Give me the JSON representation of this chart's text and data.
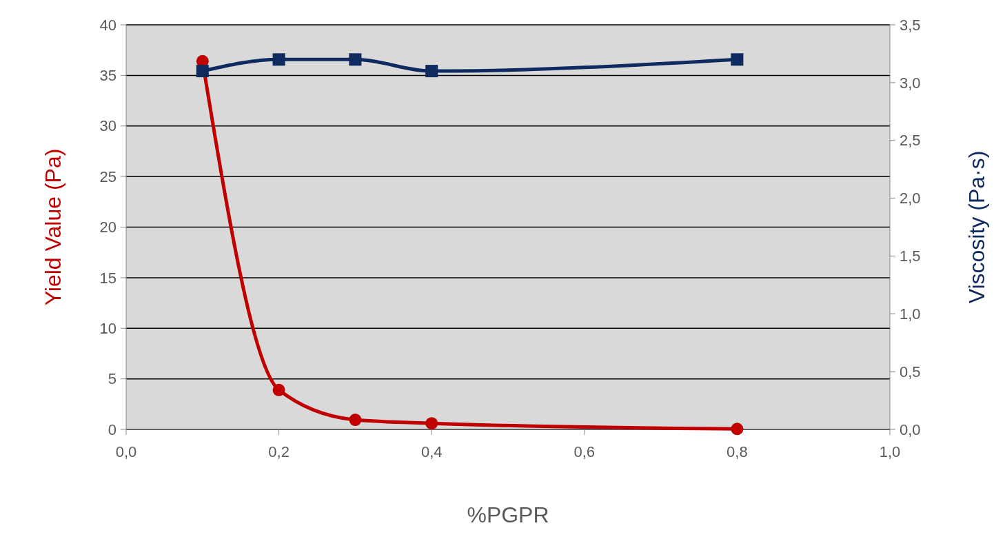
{
  "chart_data": {
    "type": "line",
    "xlabel": "%PGPR",
    "ylabel": "Yield Value (Pa)",
    "y2label": "Viscosity (Pa·s)",
    "xlim": [
      0,
      1
    ],
    "xticks": [
      {
        "value": 0,
        "label": "0,0"
      },
      {
        "value": 0.2,
        "label": "0,2"
      },
      {
        "value": 0.4,
        "label": "0,4"
      },
      {
        "value": 0.6,
        "label": "0,6"
      },
      {
        "value": 0.8,
        "label": "0,8"
      },
      {
        "value": 1,
        "label": "1,0"
      }
    ],
    "ylim": [
      0,
      40
    ],
    "yticks": [
      0,
      5,
      10,
      15,
      20,
      25,
      30,
      35,
      40
    ],
    "y2lim": [
      0,
      3.5
    ],
    "y2ticks": [
      {
        "value": 0,
        "label": "0,0"
      },
      {
        "value": 0.5,
        "label": "0,5"
      },
      {
        "value": 1,
        "label": "1,0"
      },
      {
        "value": 1.5,
        "label": "1,5"
      },
      {
        "value": 2,
        "label": "2,0"
      },
      {
        "value": 2.5,
        "label": "2,5"
      },
      {
        "value": 3,
        "label": "3,0"
      },
      {
        "value": 3.5,
        "label": "3,5"
      }
    ],
    "x": [
      0.1,
      0.2,
      0.3,
      0.4,
      0.8
    ],
    "grid": "y",
    "line_style": "solid",
    "series": [
      {
        "color": "#c00000",
        "values": [
          36.4,
          3.9,
          0.95,
          0.6,
          0.05
        ],
        "marker": "circle"
      },
      {
        "color": "#0f2a5e",
        "values": [
          3.1,
          3.2,
          3.2,
          3.1,
          3.2
        ],
        "marker": "square",
        "axis": "y2"
      }
    ]
  }
}
